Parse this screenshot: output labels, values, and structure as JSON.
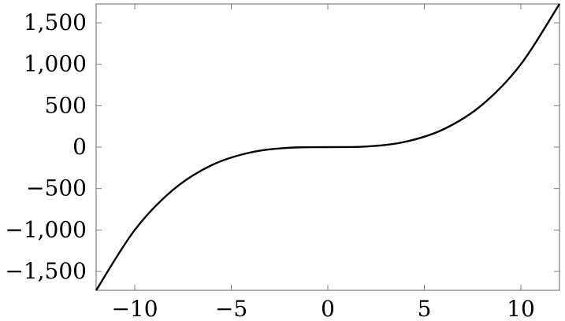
{
  "chart_data": {
    "type": "line",
    "title": "",
    "xlabel": "",
    "ylabel": "",
    "xlim": [
      -12,
      12
    ],
    "ylim": [
      -1728,
      1728
    ],
    "x_ticks": [
      -10,
      -5,
      0,
      5,
      10
    ],
    "y_ticks": [
      -1500,
      -1000,
      -500,
      0,
      500,
      1000,
      1500
    ],
    "x_tick_labels": [
      "−10",
      "−5",
      "0",
      "5",
      "10"
    ],
    "y_tick_labels": [
      "−1,500",
      "−1,000",
      "−500",
      "0",
      "500",
      "1,000",
      "1,500"
    ],
    "grid": false,
    "legend": "none",
    "colors": {
      "line": "#000000",
      "axes": "#7f7f7f"
    },
    "series": [
      {
        "x": [
          -12,
          -10,
          -8,
          -6,
          -4,
          -2,
          0,
          2,
          4,
          6,
          8,
          10,
          12
        ],
        "y": [
          -1728,
          -1000,
          -512,
          -216,
          -64,
          -8,
          0,
          8,
          64,
          216,
          512,
          1000,
          1728
        ]
      }
    ]
  }
}
